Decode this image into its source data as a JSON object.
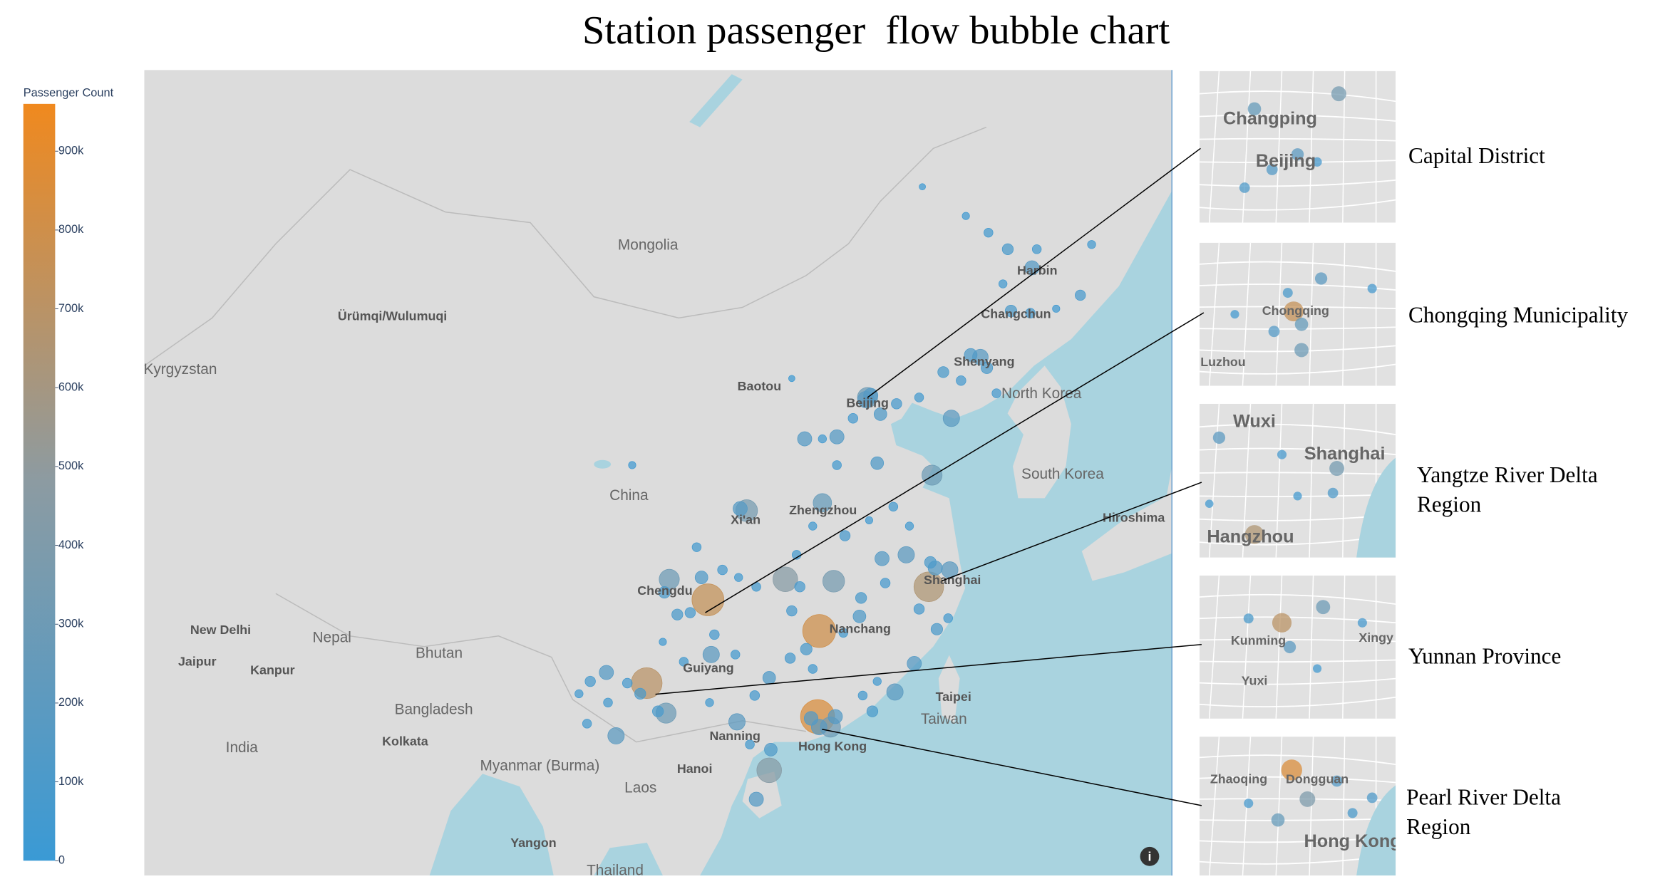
{
  "chart_data": {
    "type": "bubble-map",
    "title": "Station passenger  flow bubble chart",
    "colorbar_title": "Passenger Count",
    "colorscale": [
      "#3a9ad5",
      "#8c9ba2",
      "#f0891e"
    ],
    "clim": [
      0,
      960000
    ],
    "cticks": [
      0,
      {
        "value": 100000,
        "label": "100k"
      },
      {
        "value": 200000,
        "label": "200k"
      },
      {
        "value": 300000,
        "label": "300k"
      },
      {
        "value": 400000,
        "label": "400k"
      },
      {
        "value": 500000,
        "label": "500k"
      },
      {
        "value": 600000,
        "label": "600k"
      },
      {
        "value": 700000,
        "label": "700k"
      },
      {
        "value": 800000,
        "label": "800k"
      },
      {
        "value": 900000,
        "label": "900k"
      }
    ],
    "map_labels": [
      "Mongolia",
      "Ürümqi/Wulumuqi",
      "Kyrgyzstan",
      "Harbin",
      "Changchun",
      "Shenyang",
      "Baotou",
      "Beijing",
      "North Korea",
      "South Korea",
      "China",
      "Xi'an",
      "Zhengzhou",
      "Hiroshima",
      "Chengdu",
      "Shanghai",
      "Nanchang",
      "Guiyang",
      "New Delhi",
      "Nepal",
      "Bhutan",
      "Jaipur",
      "Kanpur",
      "Bangladesh",
      "Kolkata",
      "India",
      "Myanmar (Burma)",
      "Laos",
      "Hanoi",
      "Nanning",
      "Hong Kong",
      "Taipei",
      "Taiwan",
      "Yangon",
      "Thailand"
    ],
    "stations": [
      {
        "lon": 116.4,
        "lat": 39.9,
        "value": 300000
      },
      {
        "lon": 116.3,
        "lat": 39.8,
        "value": 200000
      },
      {
        "lon": 116.6,
        "lat": 40.0,
        "value": 150000
      },
      {
        "lon": 117.2,
        "lat": 39.1,
        "value": 120000
      },
      {
        "lon": 126.6,
        "lat": 45.8,
        "value": 150000
      },
      {
        "lon": 125.3,
        "lat": 43.9,
        "value": 100000
      },
      {
        "lon": 123.4,
        "lat": 41.8,
        "value": 180000
      },
      {
        "lon": 121.6,
        "lat": 38.9,
        "value": 200000
      },
      {
        "lon": 123.9,
        "lat": 47.3,
        "value": 60000
      },
      {
        "lon": 117.0,
        "lat": 36.7,
        "value": 120000
      },
      {
        "lon": 120.4,
        "lat": 36.1,
        "value": 300000
      },
      {
        "lon": 113.6,
        "lat": 34.7,
        "value": 250000
      },
      {
        "lon": 108.9,
        "lat": 34.3,
        "value": 350000
      },
      {
        "lon": 108.5,
        "lat": 34.4,
        "value": 150000
      },
      {
        "lon": 121.5,
        "lat": 31.2,
        "value": 200000
      },
      {
        "lon": 120.2,
        "lat": 30.3,
        "value": 650000
      },
      {
        "lon": 118.8,
        "lat": 32.0,
        "value": 200000
      },
      {
        "lon": 120.3,
        "lat": 31.6,
        "value": 100000
      },
      {
        "lon": 120.6,
        "lat": 31.3,
        "value": 150000
      },
      {
        "lon": 117.3,
        "lat": 31.8,
        "value": 150000
      },
      {
        "lon": 111.3,
        "lat": 30.7,
        "value": 450000
      },
      {
        "lon": 113.4,
        "lat": 27.9,
        "value": 800000
      },
      {
        "lon": 106.5,
        "lat": 29.6,
        "value": 750000
      },
      {
        "lon": 104.1,
        "lat": 30.7,
        "value": 300000
      },
      {
        "lon": 102.7,
        "lat": 25.0,
        "value": 700000
      },
      {
        "lon": 113.3,
        "lat": 23.1,
        "value": 850000
      },
      {
        "lon": 114.1,
        "lat": 22.5,
        "value": 300000
      },
      {
        "lon": 110.3,
        "lat": 20.0,
        "value": 450000
      },
      {
        "lon": 109.5,
        "lat": 18.3,
        "value": 150000
      },
      {
        "lon": 106.7,
        "lat": 26.6,
        "value": 200000
      },
      {
        "lon": 108.3,
        "lat": 22.8,
        "value": 200000
      },
      {
        "lon": 119.3,
        "lat": 26.1,
        "value": 150000
      },
      {
        "lon": 118.1,
        "lat": 24.5,
        "value": 200000
      },
      {
        "lon": 112.5,
        "lat": 37.9,
        "value": 150000
      },
      {
        "lon": 114.5,
        "lat": 38.0,
        "value": 150000
      },
      {
        "lon": 111.7,
        "lat": 40.8,
        "value": 30000
      },
      {
        "lon": 101.8,
        "lat": 36.6,
        "value": 40000
      },
      {
        "lon": 100.2,
        "lat": 25.6,
        "value": 150000
      },
      {
        "lon": 100.8,
        "lat": 22.0,
        "value": 200000
      },
      {
        "lon": 103.9,
        "lat": 23.3,
        "value": 300000
      },
      {
        "lon": 112.0,
        "lat": 32.0,
        "value": 60000
      },
      {
        "lon": 113.0,
        "lat": 33.5,
        "value": 50000
      },
      {
        "lon": 115.0,
        "lat": 33.0,
        "value": 80000
      },
      {
        "lon": 116.5,
        "lat": 33.8,
        "value": 40000
      },
      {
        "lon": 118.0,
        "lat": 34.5,
        "value": 60000
      },
      {
        "lon": 119.0,
        "lat": 33.5,
        "value": 50000
      },
      {
        "lon": 117.5,
        "lat": 30.5,
        "value": 70000
      },
      {
        "lon": 116.0,
        "lat": 29.7,
        "value": 90000
      },
      {
        "lon": 115.9,
        "lat": 28.7,
        "value": 120000
      },
      {
        "lon": 114.9,
        "lat": 27.8,
        "value": 60000
      },
      {
        "lon": 117.0,
        "lat": 25.1,
        "value": 50000
      },
      {
        "lon": 116.1,
        "lat": 24.3,
        "value": 60000
      },
      {
        "lon": 119.6,
        "lat": 29.1,
        "value": 80000
      },
      {
        "lon": 120.7,
        "lat": 28.0,
        "value": 100000
      },
      {
        "lon": 121.4,
        "lat": 28.6,
        "value": 60000
      },
      {
        "lon": 110.3,
        "lat": 25.3,
        "value": 120000
      },
      {
        "lon": 109.4,
        "lat": 24.3,
        "value": 70000
      },
      {
        "lon": 111.6,
        "lat": 26.4,
        "value": 80000
      },
      {
        "lon": 112.6,
        "lat": 26.9,
        "value": 100000
      },
      {
        "lon": 113.0,
        "lat": 25.8,
        "value": 60000
      },
      {
        "lon": 114.4,
        "lat": 23.1,
        "value": 150000
      },
      {
        "lon": 113.4,
        "lat": 22.5,
        "value": 180000
      },
      {
        "lon": 112.9,
        "lat": 23.0,
        "value": 140000
      },
      {
        "lon": 116.7,
        "lat": 23.4,
        "value": 90000
      },
      {
        "lon": 110.4,
        "lat": 21.2,
        "value": 120000
      },
      {
        "lon": 109.1,
        "lat": 21.5,
        "value": 60000
      },
      {
        "lon": 106.6,
        "lat": 23.9,
        "value": 50000
      },
      {
        "lon": 105.0,
        "lat": 26.2,
        "value": 60000
      },
      {
        "lon": 104.6,
        "lat": 28.8,
        "value": 90000
      },
      {
        "lon": 103.8,
        "lat": 30.0,
        "value": 100000
      },
      {
        "lon": 105.8,
        "lat": 32.4,
        "value": 60000
      },
      {
        "lon": 107.4,
        "lat": 31.2,
        "value": 70000
      },
      {
        "lon": 108.4,
        "lat": 30.8,
        "value": 50000
      },
      {
        "lon": 109.5,
        "lat": 30.3,
        "value": 60000
      },
      {
        "lon": 111.7,
        "lat": 29.0,
        "value": 80000
      },
      {
        "lon": 114.3,
        "lat": 30.6,
        "value": 350000
      },
      {
        "lon": 112.2,
        "lat": 30.3,
        "value": 80000
      },
      {
        "lon": 113.6,
        "lat": 37.9,
        "value": 50000
      },
      {
        "lon": 114.5,
        "lat": 36.6,
        "value": 60000
      },
      {
        "lon": 115.5,
        "lat": 38.9,
        "value": 70000
      },
      {
        "lon": 118.2,
        "lat": 39.6,
        "value": 80000
      },
      {
        "lon": 119.6,
        "lat": 39.9,
        "value": 60000
      },
      {
        "lon": 121.1,
        "lat": 41.1,
        "value": 90000
      },
      {
        "lon": 122.2,
        "lat": 40.7,
        "value": 70000
      },
      {
        "lon": 124.4,
        "lat": 40.1,
        "value": 60000
      },
      {
        "lon": 123.8,
        "lat": 41.3,
        "value": 100000
      },
      {
        "lon": 122.8,
        "lat": 41.9,
        "value": 120000
      },
      {
        "lon": 126.5,
        "lat": 43.8,
        "value": 70000
      },
      {
        "lon": 124.8,
        "lat": 45.1,
        "value": 50000
      },
      {
        "lon": 126.9,
        "lat": 46.6,
        "value": 60000
      },
      {
        "lon": 129.6,
        "lat": 44.6,
        "value": 80000
      },
      {
        "lon": 130.3,
        "lat": 46.8,
        "value": 50000
      },
      {
        "lon": 125.1,
        "lat": 46.6,
        "value": 90000
      },
      {
        "lon": 122.5,
        "lat": 48.0,
        "value": 40000
      },
      {
        "lon": 119.8,
        "lat": 49.2,
        "value": 30000
      },
      {
        "lon": 128.1,
        "lat": 44.0,
        "value": 40000
      },
      {
        "lon": 105.4,
        "lat": 28.9,
        "value": 80000
      },
      {
        "lon": 106.1,
        "lat": 30.8,
        "value": 120000
      },
      {
        "lon": 102.3,
        "lat": 24.4,
        "value": 90000
      },
      {
        "lon": 100.3,
        "lat": 23.9,
        "value": 60000
      },
      {
        "lon": 99.2,
        "lat": 25.1,
        "value": 80000
      },
      {
        "lon": 101.5,
        "lat": 25.0,
        "value": 70000
      },
      {
        "lon": 103.4,
        "lat": 23.4,
        "value": 90000
      },
      {
        "lon": 98.5,
        "lat": 24.4,
        "value": 50000
      },
      {
        "lon": 99.0,
        "lat": 22.7,
        "value": 60000
      },
      {
        "lon": 103.7,
        "lat": 27.3,
        "value": 40000
      },
      {
        "lon": 106.9,
        "lat": 27.7,
        "value": 70000
      },
      {
        "lon": 108.2,
        "lat": 26.6,
        "value": 60000
      }
    ],
    "insets": [
      {
        "label": "Capital District",
        "places": [
          "Changping",
          "Beijing"
        ],
        "values": [
          250000,
          350000,
          150000,
          120000,
          200000,
          80000
        ]
      },
      {
        "label": "Chongqing Municipality",
        "places": [
          "Chongqing",
          "Luzhou"
        ],
        "values": [
          750000,
          250000,
          150000,
          300000,
          200000,
          100000,
          80000,
          60000
        ]
      },
      {
        "label": "Yangtze River Delta Region",
        "places": [
          "Wuxi",
          "Shanghai",
          "Hangzhou"
        ],
        "values": [
          650000,
          350000,
          200000,
          120000,
          80000,
          60000,
          50000
        ]
      },
      {
        "label": "Yunnan Province",
        "places": [
          "Kunming",
          "Xingy",
          "Yuxi"
        ],
        "values": [
          700000,
          300000,
          200000,
          100000,
          80000,
          60000
        ]
      },
      {
        "label": "Pearl River Delta Region",
        "places": [
          "Zhaoqing",
          "Dongguan",
          "Hong Kong"
        ],
        "values": [
          850000,
          400000,
          250000,
          150000,
          120000,
          100000,
          80000
        ]
      }
    ]
  }
}
